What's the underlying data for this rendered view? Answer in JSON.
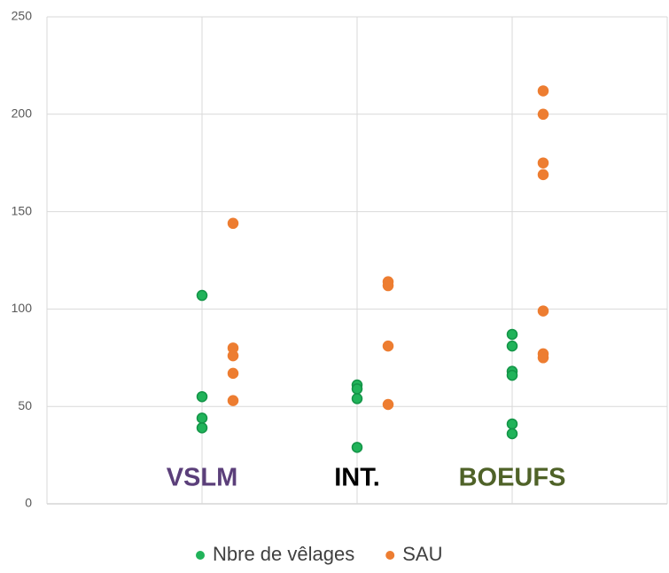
{
  "chart_data": {
    "type": "scatter",
    "xlim": [
      0,
      4
    ],
    "xticks": [
      0,
      1,
      2,
      3,
      4
    ],
    "ylim": [
      0,
      250
    ],
    "yticks": [
      0,
      50,
      100,
      150,
      200,
      250
    ],
    "grid": true,
    "legend": "bottom",
    "series": [
      {
        "name": "Nbre de vêlages",
        "color": "#21b35a",
        "x": [
          1,
          1,
          1,
          1,
          2,
          2,
          2,
          2,
          3,
          3,
          3,
          3,
          3,
          3
        ],
        "values": [
          107,
          55,
          44,
          39,
          61,
          59,
          54,
          29,
          87,
          81,
          68,
          66,
          41,
          36
        ]
      },
      {
        "name": "SAU",
        "color": "#ed7d31",
        "x": [
          1.2,
          1.2,
          1.2,
          1.2,
          1.2,
          2.2,
          2.2,
          2.2,
          2.2,
          3.2,
          3.2,
          3.2,
          3.2,
          3.2,
          3.2,
          3.2
        ],
        "values": [
          144,
          80,
          76,
          67,
          53,
          114,
          112,
          81,
          51,
          212,
          200,
          175,
          169,
          99,
          77,
          75
        ]
      }
    ],
    "annotations": [
      {
        "text": "VSLM",
        "color": "#5b3f7a"
      },
      {
        "text": "INT.",
        "color": "#000000"
      },
      {
        "text": "BOEUFS",
        "color": "#4f6228"
      }
    ]
  }
}
